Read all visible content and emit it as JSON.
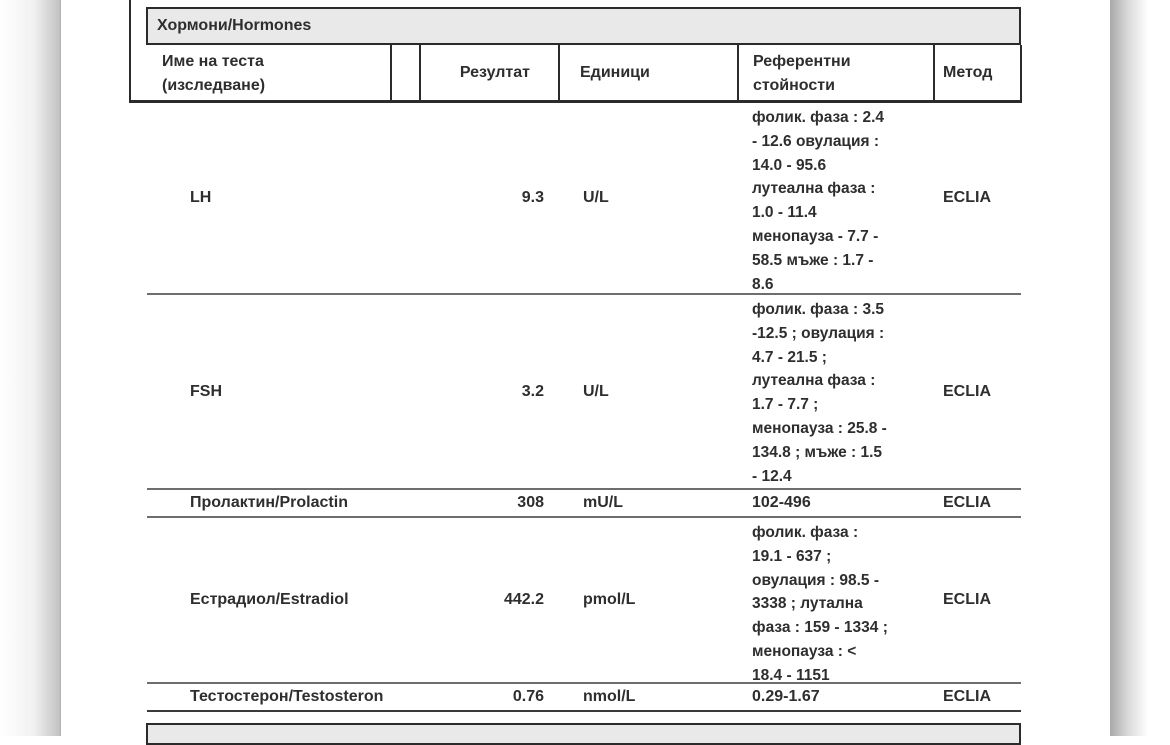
{
  "colors": {
    "section_bar_bg": "#e9e9e9",
    "border_dark": "#2b2b2b",
    "row_separator": "#6e6e6e",
    "text": "#2e2e2e"
  },
  "section": {
    "title": "Хормони/Hormones"
  },
  "table": {
    "headers": {
      "name": "Име на теста\n(изследване)",
      "result": "Резултат",
      "units": "Единици",
      "reference": "Референтни\nстойности",
      "method": "Метод"
    },
    "rows": [
      {
        "name": "LH",
        "result": "9.3",
        "units": "U/L",
        "reference": "фолик. фаза : 2.4\n- 12.6 овулация :\n14.0 - 95.6\nлутеална фаза :\n1.0 - 11.4\nменопауза - 7.7 -\n58.5 мъже : 1.7 -\n8.6",
        "method": "ECLIA"
      },
      {
        "name": "FSH",
        "result": "3.2",
        "units": "U/L",
        "reference": "фолик. фаза : 3.5\n-12.5 ; овулация :\n4.7 - 21.5 ;\nлутеална фаза :\n1.7 - 7.7 ;\nменопауза : 25.8 -\n134.8 ; мъже : 1.5\n- 12.4",
        "method": "ECLIA"
      },
      {
        "name": "Пролактин/Prolactin",
        "result": "308",
        "units": "mU/L",
        "reference": "102-496",
        "method": "ECLIA"
      },
      {
        "name": "Естрадиол/Estradiol",
        "result": "442.2",
        "units": "pmol/L",
        "reference": "фолик. фаза :\n19.1 - 637 ;\nовулация : 98.5 -\n3338 ; лутална\nфаза : 159 - 1334 ;\nменопауза : <\n18.4 - 1151",
        "method": "ECLIA"
      },
      {
        "name": "Тестостерон/Testosteron",
        "result": "0.76",
        "units": "nmol/L",
        "reference": "0.29-1.67",
        "method": "ECLIA"
      }
    ]
  }
}
